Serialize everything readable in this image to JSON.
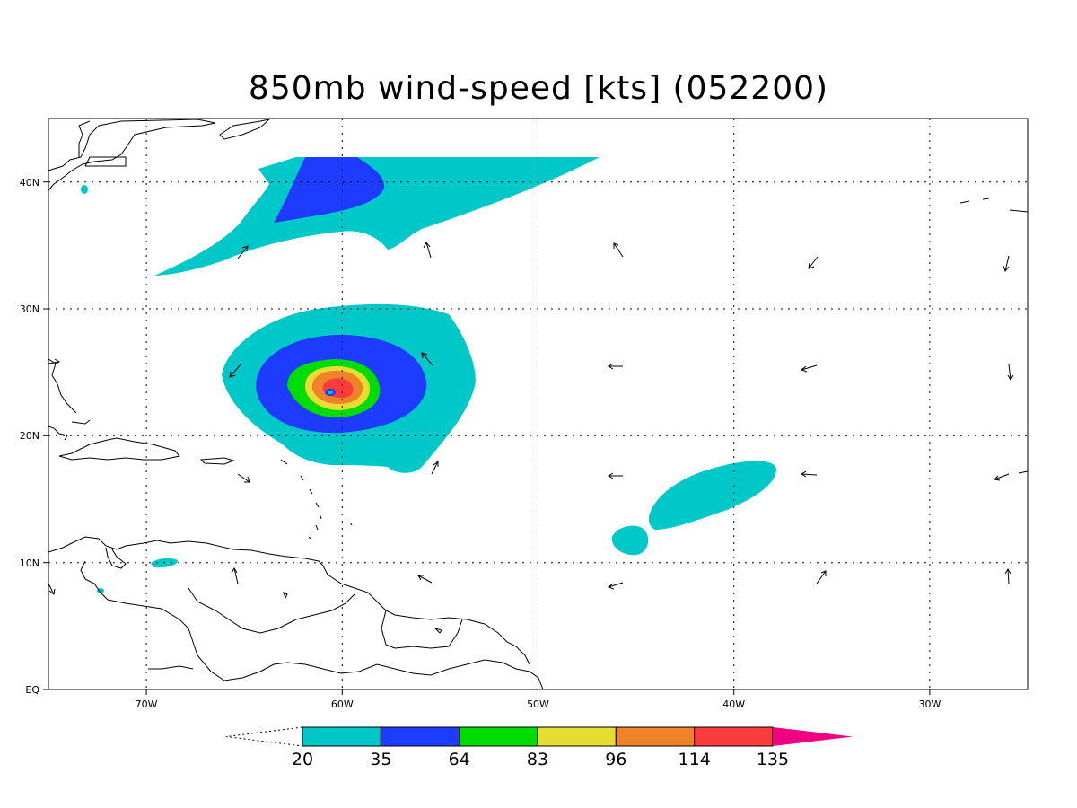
{
  "title": "850mb wind-speed [kts] (052200)",
  "map": {
    "lon_range": [
      -75,
      -25
    ],
    "lat_range": [
      0,
      45
    ],
    "x_ticks": [
      {
        "lon": -70,
        "label": "70W"
      },
      {
        "lon": -60,
        "label": "60W"
      },
      {
        "lon": -50,
        "label": "50W"
      },
      {
        "lon": -40,
        "label": "40W"
      },
      {
        "lon": -30,
        "label": "30W"
      }
    ],
    "y_ticks": [
      {
        "lat": 0,
        "label": "EQ"
      },
      {
        "lat": 10,
        "label": "10N"
      },
      {
        "lat": 20,
        "label": "20N"
      },
      {
        "lat": 30,
        "label": "30N"
      },
      {
        "lat": 40,
        "label": "40N"
      }
    ],
    "gridlines": "dotted"
  },
  "colorbar": {
    "levels": [
      {
        "label": "20",
        "color": "#00c8c8"
      },
      {
        "label": "35",
        "color": "#1e3cff"
      },
      {
        "label": "64",
        "color": "#00dc00"
      },
      {
        "label": "83",
        "color": "#e6dc32"
      },
      {
        "label": "96",
        "color": "#f08228"
      },
      {
        "label": "114",
        "color": "#fa3c3c"
      },
      {
        "label": "135",
        "color": "#f00082"
      }
    ],
    "below_color": "#ffffff",
    "above_color": "#f00082"
  },
  "features": {
    "hurricane_center": {
      "lon": -60.6,
      "lat": 23.7
    },
    "wind_vectors": "unit-length arrows"
  }
}
